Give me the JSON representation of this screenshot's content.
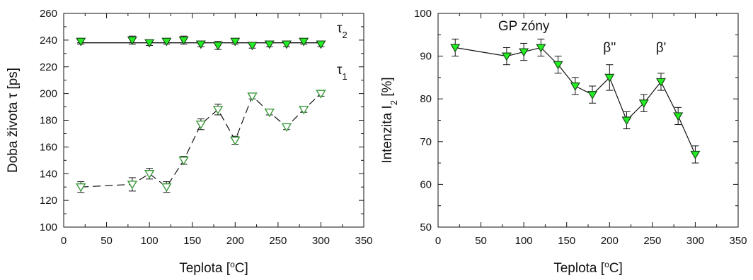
{
  "colors": {
    "marker_fill": "#22ee22",
    "marker_stroke": "#1a4a1a",
    "open_marker_stroke": "#3a9a3a",
    "line": "#111111",
    "background": "#ffffff"
  },
  "chart_data": [
    {
      "type": "scatter",
      "xlabel": {
        "prefix": "Teplota [",
        "sup": "o",
        "suffix": "C]"
      },
      "ylabel": "Doba života τ [ps]",
      "xlim": [
        0,
        350
      ],
      "ylim": [
        100,
        260
      ],
      "xticks": [
        "0",
        "50",
        "100",
        "150",
        "200",
        "250",
        "300",
        "350"
      ],
      "yticks": [
        "100",
        "120",
        "140",
        "160",
        "180",
        "200",
        "220",
        "240",
        "260"
      ],
      "series": [
        {
          "name": {
            "base": "τ",
            "sub": "2"
          },
          "marker": "filled-triangle-down",
          "line": "solid-horizontal-fit",
          "fit_y": 238,
          "x": [
            20,
            80,
            100,
            120,
            140,
            160,
            180,
            200,
            220,
            240,
            260,
            280,
            300
          ],
          "y": [
            239,
            240,
            238,
            239,
            240,
            237,
            236,
            239,
            236,
            237,
            237,
            239,
            237
          ],
          "err": [
            2,
            3,
            2,
            2,
            3,
            2,
            3,
            2,
            2,
            2,
            2,
            2,
            2
          ]
        },
        {
          "name": {
            "base": "τ",
            "sub": "1"
          },
          "marker": "open-triangle-down",
          "line": "dashed",
          "x": [
            20,
            80,
            100,
            120,
            140,
            160,
            180,
            200,
            220,
            240,
            260,
            280,
            300
          ],
          "y": [
            130,
            132,
            140,
            130,
            150,
            177,
            188,
            165,
            198,
            186,
            175,
            188,
            200
          ],
          "err": [
            4,
            5,
            4,
            4,
            3,
            4,
            4,
            3,
            2,
            2,
            2,
            2,
            2
          ]
        }
      ]
    },
    {
      "type": "line",
      "xlabel": {
        "prefix": "Teplota [",
        "sup": "o",
        "suffix": "C]"
      },
      "ylabel": {
        "prefix": "Intenzita I",
        "sub": "2",
        "suffix": " [%]"
      },
      "xlim": [
        0,
        350
      ],
      "ylim": [
        50,
        100
      ],
      "xticks": [
        "0",
        "50",
        "100",
        "150",
        "200",
        "250",
        "300",
        "350"
      ],
      "yticks": [
        "50",
        "60",
        "70",
        "80",
        "90",
        "100"
      ],
      "annotations": [
        {
          "text": "GP zóny",
          "x": 100,
          "y": 96
        },
        {
          "text": "β''",
          "x": 200,
          "y": 91
        },
        {
          "text": "β'",
          "x": 260,
          "y": 91
        }
      ],
      "series": [
        {
          "marker": "filled-triangle-down",
          "line": "solid",
          "x": [
            20,
            80,
            100,
            120,
            140,
            160,
            180,
            200,
            220,
            240,
            260,
            280,
            300
          ],
          "y": [
            92,
            90,
            91,
            92,
            88,
            83,
            81,
            85,
            75,
            79,
            84,
            76,
            67
          ],
          "err": [
            2,
            2,
            2,
            2,
            2,
            2,
            2,
            3,
            2,
            2,
            2,
            2,
            2
          ]
        }
      ]
    }
  ]
}
